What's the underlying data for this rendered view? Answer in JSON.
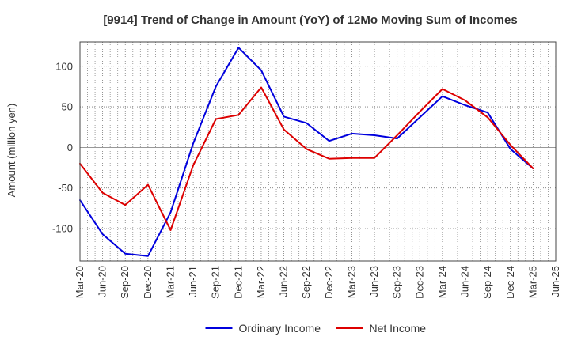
{
  "chart_data": {
    "type": "line",
    "title": "[9914]  Trend of Change in Amount (YoY) of 12Mo Moving Sum of Incomes",
    "xlabel": "",
    "ylabel": "Amount (million yen)",
    "categories": [
      "Mar-20",
      "Jun-20",
      "Sep-20",
      "Dec-20",
      "Mar-21",
      "Jun-21",
      "Sep-21",
      "Dec-21",
      "Mar-22",
      "Jun-22",
      "Sep-22",
      "Dec-22",
      "Mar-23",
      "Jun-23",
      "Sep-23",
      "Dec-23",
      "Mar-24",
      "Jun-24",
      "Sep-24",
      "Dec-24",
      "Mar-25",
      "Jun-25"
    ],
    "yticks": [
      100,
      50,
      0,
      -50,
      -100
    ],
    "ylim": [
      -140,
      130
    ],
    "grid": true,
    "legend_position": "bottom",
    "series": [
      {
        "name": "Ordinary Income",
        "color": "#0000dd",
        "values": [
          -65,
          -107,
          -131,
          -134,
          -80,
          5,
          75,
          123,
          95,
          38,
          30,
          8,
          17,
          15,
          11,
          37,
          63,
          52,
          43,
          -2,
          -26,
          null
        ]
      },
      {
        "name": "Net Income",
        "color": "#dd0000",
        "values": [
          -20,
          -56,
          -71,
          -46,
          -102,
          -22,
          35,
          40,
          74,
          22,
          -2,
          -14,
          -13,
          -13,
          15,
          44,
          72,
          58,
          37,
          3,
          -26,
          null
        ]
      }
    ]
  }
}
